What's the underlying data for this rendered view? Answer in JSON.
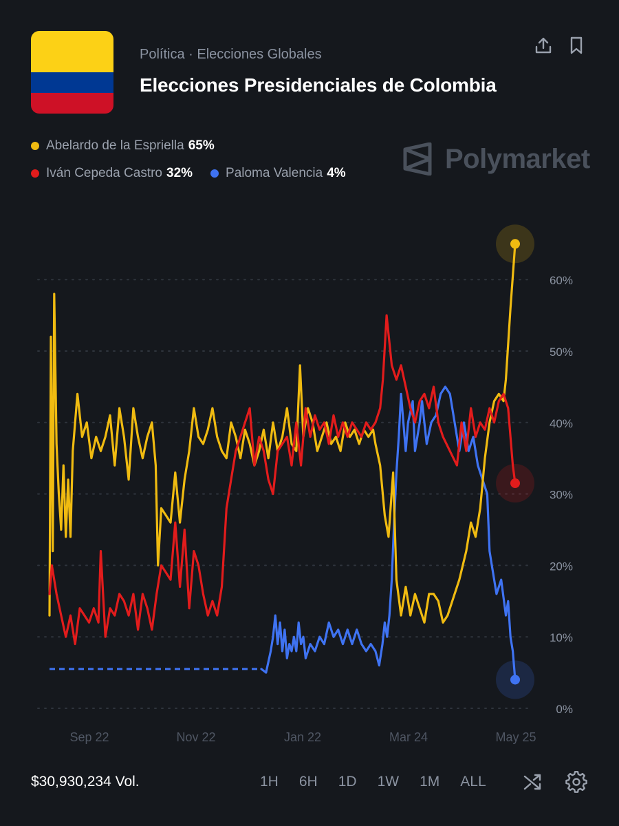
{
  "header": {
    "category": "Política · Elecciones Globales",
    "title": "Elecciones Presidenciales de Colombia",
    "flag_colors": [
      "#fcd116",
      "#003893",
      "#ce1126"
    ],
    "share_icon": "share-icon",
    "bookmark_icon": "bookmark-icon"
  },
  "brand": {
    "name": "Polymarket",
    "icon": "polymarket-logo-icon"
  },
  "legend": [
    {
      "name": "Abelardo de la Espriella",
      "pct": "65%",
      "color": "#f0bb11"
    },
    {
      "name": "Iván Cepeda Castro",
      "pct": "32%",
      "color": "#e21c1c"
    },
    {
      "name": "Paloma Valencia",
      "pct": "4%",
      "color": "#3f73f2"
    }
  ],
  "footer": {
    "volume": "$30,930,234 Vol.",
    "ranges": [
      "1H",
      "6H",
      "1D",
      "1W",
      "1M",
      "ALL"
    ],
    "shuffle_icon": "shuffle-icon",
    "settings_icon": "gear-icon"
  },
  "chart_data": {
    "type": "line",
    "x_ticks": [
      "Sep 22",
      "Nov 22",
      "Jan 22",
      "Mar 24",
      "May 25"
    ],
    "y_ticks": [
      "0%",
      "10%",
      "20%",
      "30%",
      "40%",
      "50%",
      "60%"
    ],
    "ylim": [
      0,
      60
    ],
    "xlim": [
      0,
      100
    ],
    "grid": true,
    "series": [
      {
        "name": "Abelardo de la Espriella",
        "color": "#f0bb11",
        "points": [
          [
            0,
            13
          ],
          [
            0.3,
            52
          ],
          [
            0.7,
            22
          ],
          [
            1.0,
            58
          ],
          [
            1.5,
            37
          ],
          [
            2.0,
            30
          ],
          [
            2.5,
            25
          ],
          [
            3.0,
            34
          ],
          [
            3.5,
            24
          ],
          [
            4.0,
            32
          ],
          [
            4.5,
            24
          ],
          [
            5.0,
            36
          ],
          [
            6.0,
            44
          ],
          [
            7.0,
            38
          ],
          [
            8.0,
            40
          ],
          [
            9.0,
            35
          ],
          [
            10.0,
            38
          ],
          [
            11.0,
            36
          ],
          [
            12.0,
            38
          ],
          [
            13.0,
            41
          ],
          [
            14.0,
            34
          ],
          [
            15.0,
            42
          ],
          [
            16.0,
            38
          ],
          [
            17.0,
            32
          ],
          [
            18.0,
            42
          ],
          [
            19.0,
            38
          ],
          [
            20.0,
            35
          ],
          [
            21.0,
            38
          ],
          [
            22.0,
            40
          ],
          [
            22.8,
            34
          ],
          [
            23.3,
            20
          ],
          [
            24.0,
            28
          ],
          [
            25.0,
            27
          ],
          [
            26.0,
            26
          ],
          [
            27.0,
            33
          ],
          [
            28.0,
            26
          ],
          [
            29.0,
            32
          ],
          [
            30.0,
            36
          ],
          [
            31.0,
            42
          ],
          [
            32.0,
            38
          ],
          [
            33.0,
            37
          ],
          [
            34.0,
            39
          ],
          [
            35.0,
            42
          ],
          [
            36.0,
            38
          ],
          [
            37.0,
            36
          ],
          [
            38.0,
            35
          ],
          [
            39.0,
            40
          ],
          [
            40.0,
            38
          ],
          [
            41.0,
            35
          ],
          [
            42.0,
            39
          ],
          [
            43.0,
            37
          ],
          [
            44.0,
            34
          ],
          [
            45.0,
            36
          ],
          [
            46.0,
            39
          ],
          [
            47.0,
            35
          ],
          [
            48.0,
            40
          ],
          [
            49.0,
            36
          ],
          [
            50.0,
            38
          ],
          [
            51.0,
            42
          ],
          [
            52.0,
            37
          ],
          [
            53.0,
            36
          ],
          [
            53.8,
            48
          ],
          [
            54.5,
            38
          ],
          [
            55.5,
            42
          ],
          [
            56.5,
            40
          ],
          [
            57.5,
            36
          ],
          [
            58.5,
            38
          ],
          [
            59.5,
            40
          ],
          [
            60.5,
            37
          ],
          [
            61.5,
            38
          ],
          [
            62.5,
            36
          ],
          [
            63.5,
            40
          ],
          [
            64.5,
            38
          ],
          [
            65.5,
            39
          ],
          [
            66.5,
            37
          ],
          [
            67.5,
            39
          ],
          [
            68.5,
            38
          ],
          [
            69.5,
            39
          ],
          [
            70.0,
            37
          ],
          [
            71.0,
            34
          ],
          [
            72.0,
            27
          ],
          [
            72.8,
            24
          ],
          [
            73.8,
            33
          ],
          [
            74.5,
            18
          ],
          [
            75.5,
            13
          ],
          [
            76.5,
            17
          ],
          [
            77.5,
            13
          ],
          [
            78.5,
            16
          ],
          [
            79.5,
            14
          ],
          [
            80.5,
            12
          ],
          [
            81.5,
            16
          ],
          [
            82.5,
            16
          ],
          [
            83.5,
            15
          ],
          [
            84.5,
            12
          ],
          [
            85.5,
            13
          ],
          [
            86.5,
            15
          ],
          [
            88.0,
            18
          ],
          [
            89.5,
            22
          ],
          [
            90.5,
            26
          ],
          [
            91.5,
            24
          ],
          [
            92.5,
            28
          ],
          [
            93.5,
            35
          ],
          [
            94.5,
            40
          ],
          [
            95.5,
            43
          ],
          [
            96.5,
            44
          ],
          [
            97.5,
            43
          ],
          [
            98.0,
            46
          ],
          [
            99.0,
            56
          ],
          [
            100.0,
            65
          ]
        ]
      },
      {
        "name": "Iván Cepeda Castro",
        "color": "#e21c1c",
        "points": [
          [
            0,
            16
          ],
          [
            0.5,
            20
          ],
          [
            1.5,
            16
          ],
          [
            2.5,
            13
          ],
          [
            3.5,
            10
          ],
          [
            4.5,
            13
          ],
          [
            5.5,
            9
          ],
          [
            6.5,
            14
          ],
          [
            7.5,
            13
          ],
          [
            8.5,
            12
          ],
          [
            9.5,
            14
          ],
          [
            10.5,
            12
          ],
          [
            11.0,
            22
          ],
          [
            12.0,
            10
          ],
          [
            13.0,
            14
          ],
          [
            14.0,
            13
          ],
          [
            15.0,
            16
          ],
          [
            16.0,
            15
          ],
          [
            17.0,
            13
          ],
          [
            18.0,
            16
          ],
          [
            19.0,
            11
          ],
          [
            20.0,
            16
          ],
          [
            21.0,
            14
          ],
          [
            22.0,
            11
          ],
          [
            23.0,
            16
          ],
          [
            24.0,
            20
          ],
          [
            25.0,
            19
          ],
          [
            26.0,
            18
          ],
          [
            27.0,
            26
          ],
          [
            28.0,
            17
          ],
          [
            29.0,
            25
          ],
          [
            30.0,
            14
          ],
          [
            31.0,
            22
          ],
          [
            32.0,
            20
          ],
          [
            33.0,
            16
          ],
          [
            34.0,
            13
          ],
          [
            35.0,
            15
          ],
          [
            36.0,
            13
          ],
          [
            37.0,
            17
          ],
          [
            38.0,
            28
          ],
          [
            39.0,
            32
          ],
          [
            40.0,
            36
          ],
          [
            41.0,
            38
          ],
          [
            42.0,
            40
          ],
          [
            43.0,
            42
          ],
          [
            44.0,
            34
          ],
          [
            45.0,
            38
          ],
          [
            46.0,
            36
          ],
          [
            47.0,
            32
          ],
          [
            48.0,
            30
          ],
          [
            49.0,
            36
          ],
          [
            50.0,
            37
          ],
          [
            51.0,
            38
          ],
          [
            52.0,
            34
          ],
          [
            53.0,
            40
          ],
          [
            54.0,
            34
          ],
          [
            55.0,
            42
          ],
          [
            56.0,
            38
          ],
          [
            57.0,
            41
          ],
          [
            58.0,
            39
          ],
          [
            59.0,
            40
          ],
          [
            60.0,
            37
          ],
          [
            61.0,
            41
          ],
          [
            62.0,
            38
          ],
          [
            63.0,
            40
          ],
          [
            64.0,
            38
          ],
          [
            65.0,
            40
          ],
          [
            66.0,
            39
          ],
          [
            67.0,
            38
          ],
          [
            68.0,
            40
          ],
          [
            69.0,
            39
          ],
          [
            70.0,
            40
          ],
          [
            71.0,
            42
          ],
          [
            71.6,
            46
          ],
          [
            72.4,
            55
          ],
          [
            73.5,
            48
          ],
          [
            74.5,
            46
          ],
          [
            75.5,
            48
          ],
          [
            76.5,
            45
          ],
          [
            77.5,
            42
          ],
          [
            78.5,
            40
          ],
          [
            79.5,
            43
          ],
          [
            80.5,
            44
          ],
          [
            81.5,
            42
          ],
          [
            82.5,
            45
          ],
          [
            83.5,
            40
          ],
          [
            84.5,
            38
          ],
          [
            86.0,
            36
          ],
          [
            87.5,
            34
          ],
          [
            88.5,
            40
          ],
          [
            89.5,
            36
          ],
          [
            90.5,
            42
          ],
          [
            91.5,
            38
          ],
          [
            92.5,
            40
          ],
          [
            93.5,
            39
          ],
          [
            94.5,
            42
          ],
          [
            95.5,
            40
          ],
          [
            96.5,
            43
          ],
          [
            97.5,
            44
          ],
          [
            98.5,
            42
          ],
          [
            99.0,
            38
          ],
          [
            99.5,
            34
          ],
          [
            100.0,
            31.5
          ]
        ]
      },
      {
        "name": "Paloma Valencia",
        "color": "#3f73f2",
        "points": [
          [
            45.5,
            5.5
          ],
          [
            46.5,
            5
          ],
          [
            47.5,
            8
          ],
          [
            48.0,
            10
          ],
          [
            48.5,
            13
          ],
          [
            49.0,
            9
          ],
          [
            49.5,
            12
          ],
          [
            50.0,
            8
          ],
          [
            50.5,
            11
          ],
          [
            51.0,
            7
          ],
          [
            51.5,
            9
          ],
          [
            52.0,
            8
          ],
          [
            52.5,
            10
          ],
          [
            53.0,
            8
          ],
          [
            53.5,
            12
          ],
          [
            54.0,
            9
          ],
          [
            54.5,
            10
          ],
          [
            55.0,
            7
          ],
          [
            56.0,
            9
          ],
          [
            57.0,
            8
          ],
          [
            58.0,
            10
          ],
          [
            59.0,
            9
          ],
          [
            60.0,
            12
          ],
          [
            61.0,
            10
          ],
          [
            62.0,
            11
          ],
          [
            63.0,
            9
          ],
          [
            64.0,
            11
          ],
          [
            65.0,
            9
          ],
          [
            66.0,
            11
          ],
          [
            67.0,
            9
          ],
          [
            68.0,
            8
          ],
          [
            69.0,
            9
          ],
          [
            70.0,
            8
          ],
          [
            70.8,
            6
          ],
          [
            71.5,
            9
          ],
          [
            72.0,
            12
          ],
          [
            72.5,
            10
          ],
          [
            73.0,
            13
          ],
          [
            73.5,
            18
          ],
          [
            74.0,
            26
          ],
          [
            74.5,
            33
          ],
          [
            75.0,
            38
          ],
          [
            75.5,
            44
          ],
          [
            76.5,
            36
          ],
          [
            77.0,
            40
          ],
          [
            78.0,
            43
          ],
          [
            78.5,
            36
          ],
          [
            79.5,
            40
          ],
          [
            80.0,
            43
          ],
          [
            81.0,
            37
          ],
          [
            82.0,
            40
          ],
          [
            83.0,
            41
          ],
          [
            84.0,
            44
          ],
          [
            85.0,
            45
          ],
          [
            86.0,
            44
          ],
          [
            87.0,
            40
          ],
          [
            88.0,
            36
          ],
          [
            89.0,
            40
          ],
          [
            90.0,
            36
          ],
          [
            91.0,
            38
          ],
          [
            92.0,
            34
          ],
          [
            93.0,
            32
          ],
          [
            94.0,
            30
          ],
          [
            94.5,
            22
          ],
          [
            95.0,
            20
          ],
          [
            96.0,
            16
          ],
          [
            97.0,
            18
          ],
          [
            98.0,
            13
          ],
          [
            98.5,
            15
          ],
          [
            99.0,
            10
          ],
          [
            99.5,
            8
          ],
          [
            100.0,
            4
          ]
        ]
      }
    ],
    "placeholder_series": {
      "name": "Paloma Valencia",
      "from_x": 0,
      "to_x": 45.5,
      "y": 5.5
    }
  }
}
